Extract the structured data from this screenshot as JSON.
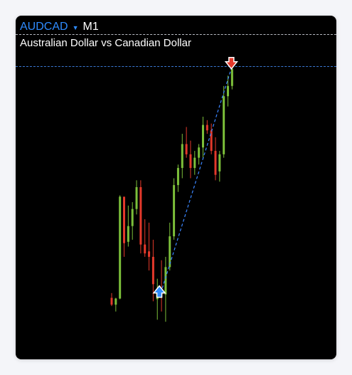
{
  "header": {
    "symbol": "AUDCAD",
    "timeframe": "M1"
  },
  "subtitle": "Australian Dollar vs Canadian Dollar",
  "colors": {
    "bull": "#7cbf3a",
    "bear": "#e4392b",
    "trend": "#3b86ff",
    "background": "#000000",
    "accent": "#2f8cff"
  },
  "icons": {
    "dropdown": "caret-down-icon",
    "buy": "up-arrow-icon",
    "sell": "down-arrow-icon"
  },
  "chart_data": {
    "type": "candlestick",
    "candles": [
      {
        "o": 90,
        "h": 97,
        "l": 78,
        "c": 80
      },
      {
        "o": 80,
        "h": 90,
        "l": 70,
        "c": 89
      },
      {
        "o": 89,
        "h": 240,
        "l": 88,
        "c": 238
      },
      {
        "o": 238,
        "h": 235,
        "l": 150,
        "c": 170
      },
      {
        "o": 172,
        "h": 225,
        "l": 165,
        "c": 195
      },
      {
        "o": 195,
        "h": 230,
        "l": 175,
        "c": 220
      },
      {
        "o": 220,
        "h": 262,
        "l": 212,
        "c": 252
      },
      {
        "o": 252,
        "h": 262,
        "l": 155,
        "c": 168
      },
      {
        "o": 168,
        "h": 205,
        "l": 150,
        "c": 155
      },
      {
        "o": 158,
        "h": 200,
        "l": 130,
        "c": 150
      },
      {
        "o": 150,
        "h": 175,
        "l": 85,
        "c": 110
      },
      {
        "o": 88,
        "h": 118,
        "l": 58,
        "c": 100
      },
      {
        "o": 100,
        "h": 145,
        "l": 70,
        "c": 95
      },
      {
        "o": 95,
        "h": 150,
        "l": 55,
        "c": 135
      },
      {
        "o": 135,
        "h": 200,
        "l": 130,
        "c": 180
      },
      {
        "o": 180,
        "h": 265,
        "l": 175,
        "c": 255
      },
      {
        "o": 255,
        "h": 285,
        "l": 245,
        "c": 280
      },
      {
        "o": 280,
        "h": 330,
        "l": 265,
        "c": 315
      },
      {
        "o": 315,
        "h": 340,
        "l": 295,
        "c": 300
      },
      {
        "o": 300,
        "h": 320,
        "l": 265,
        "c": 280
      },
      {
        "o": 280,
        "h": 305,
        "l": 270,
        "c": 295
      },
      {
        "o": 295,
        "h": 315,
        "l": 285,
        "c": 310
      },
      {
        "o": 310,
        "h": 355,
        "l": 295,
        "c": 343
      },
      {
        "o": 343,
        "h": 350,
        "l": 330,
        "c": 335
      },
      {
        "o": 335,
        "h": 345,
        "l": 300,
        "c": 305
      },
      {
        "o": 305,
        "h": 325,
        "l": 262,
        "c": 270
      },
      {
        "o": 275,
        "h": 305,
        "l": 260,
        "c": 300
      },
      {
        "o": 300,
        "h": 400,
        "l": 295,
        "c": 385
      },
      {
        "o": 385,
        "h": 415,
        "l": 370,
        "c": 400
      },
      {
        "o": 400,
        "h": 427,
        "l": 395,
        "c": 425
      }
    ],
    "buy_signal_index": 12,
    "sell_signal_index": 29,
    "ylim": [
      0,
      430
    ]
  }
}
